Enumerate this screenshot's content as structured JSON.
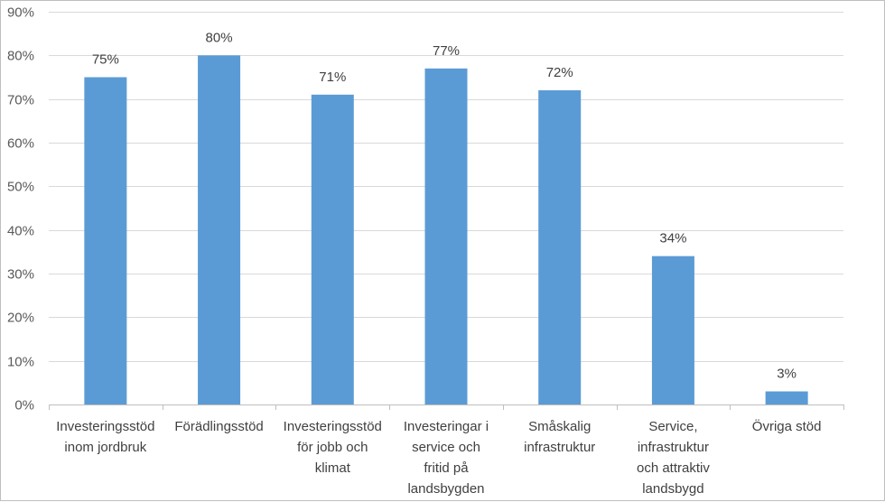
{
  "chart_data": {
    "type": "bar",
    "title": "",
    "xlabel": "",
    "ylabel": "",
    "ylim": [
      0,
      90
    ],
    "y_ticks": [
      0,
      10,
      20,
      30,
      40,
      50,
      60,
      70,
      80,
      90
    ],
    "y_tick_labels": [
      "0%",
      "10%",
      "20%",
      "30%",
      "40%",
      "50%",
      "60%",
      "70%",
      "80%",
      "90%"
    ],
    "grid": true,
    "legend": "none",
    "bar_color": "#5b9bd5",
    "categories": [
      [
        "Investeringsstöd",
        "inom jordbruk"
      ],
      [
        "Förädlingsstöd"
      ],
      [
        "Investeringsstöd",
        "för jobb och",
        "klimat"
      ],
      [
        "Investeringar i",
        "service och",
        "fritid på",
        "landsbygden"
      ],
      [
        "Småskalig",
        "infrastruktur"
      ],
      [
        "Service,",
        "infrastruktur",
        "och attraktiv",
        "landsbygd"
      ],
      [
        "Övriga stöd"
      ]
    ],
    "values": [
      75,
      80,
      71,
      77,
      72,
      34,
      3
    ],
    "data_labels": [
      "75%",
      "80%",
      "71%",
      "77%",
      "72%",
      "34%",
      "3%"
    ]
  }
}
